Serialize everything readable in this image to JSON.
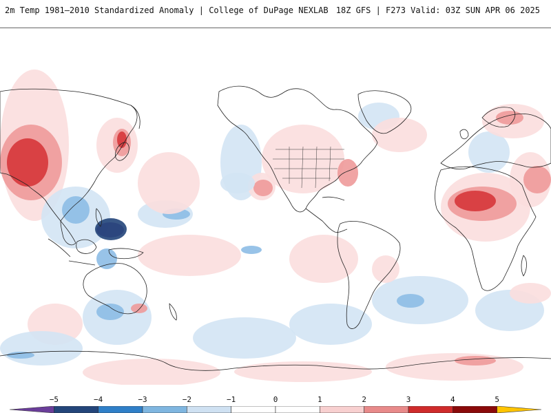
{
  "header": {
    "title_left": "2m Temp 1981–2010 Standardized Anomaly | College of DuPage NEXLAB",
    "title_right": "18Z GFS | F273 Valid: 03Z SUN APR 06 2025"
  },
  "colorbar": {
    "tick_labels": [
      "−5",
      "−4",
      "−3",
      "−2",
      "−1",
      "0",
      "1",
      "2",
      "3",
      "4",
      "5"
    ],
    "bins": [
      {
        "color": "#6a3d9a"
      },
      {
        "color": "#23457a"
      },
      {
        "color": "#2f7fc8"
      },
      {
        "color": "#7fb6e0"
      },
      {
        "color": "#cfe1f2"
      },
      {
        "color": "#ffffff"
      },
      {
        "color": "#ffffff"
      },
      {
        "color": "#f8d0d0"
      },
      {
        "color": "#e88a8a"
      },
      {
        "color": "#cf2b2b"
      },
      {
        "color": "#8a0a0a"
      },
      {
        "color": "#ffc400"
      }
    ]
  },
  "colors": {
    "light_blue": "#d3e4f4",
    "mid_blue": "#8dbce5",
    "dark_blue": "#2f7fc8",
    "navy": "#23457a",
    "purple": "#6a3d9a",
    "light_red": "#fbdede",
    "mid_red": "#ee9a9a",
    "dark_red": "#d6363a",
    "deep_red": "#8a0a0a",
    "coast": "#222222"
  }
}
